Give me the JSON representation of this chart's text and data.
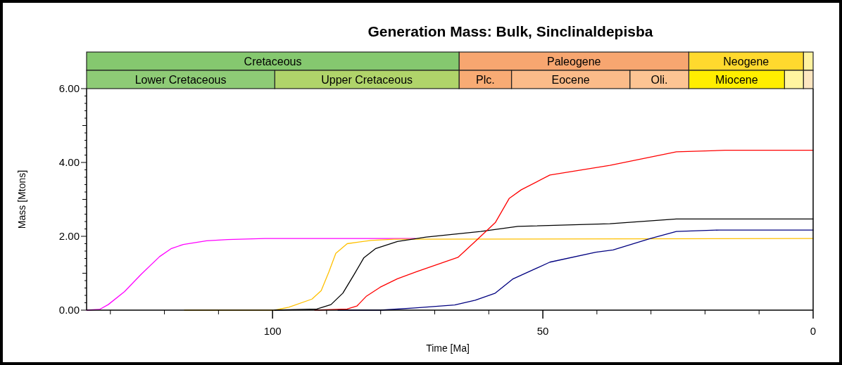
{
  "chart_data": [
    {
      "type": "bar",
      "title": "Generation Mass: Bulk, Sinclinaldepisba",
      "orientation": "horizontal",
      "stacked": true,
      "categories": [
        null,
        null
      ],
      "xlim": [
        134.4,
        0
      ],
      "tick_labels": false,
      "series": [
        {
          "values": [
            1.8,
            1.8
          ],
          "value_labels": [
            null,
            null
          ],
          "colors": [
            "#fff39f",
            "#fde7c1"
          ]
        },
        {
          "values": [
            21.2,
            3.5
          ],
          "value_labels": [
            "Neogene",
            null
          ],
          "colors": [
            "#ffd92e",
            "#fff5a0"
          ]
        },
        {
          "values": [
            42.5,
            17.7
          ],
          "value_labels": [
            "Paleogene",
            "Miocene"
          ],
          "colors": [
            "#f7a670",
            "#ffee00"
          ]
        },
        {
          "values": [
            68.9,
            10.9
          ],
          "value_labels": [
            "Cretaceous",
            "Oli."
          ],
          "colors": [
            "#85c86f",
            "#fdc493"
          ]
        },
        {
          "values": [
            null,
            21.9
          ],
          "value_labels": [
            null,
            "Eocene"
          ],
          "colors": [
            null,
            "#fbbb89"
          ]
        },
        {
          "values": [
            null,
            9.7
          ],
          "value_labels": [
            null,
            "Plc."
          ],
          "colors": [
            null,
            "#f8ab74"
          ]
        },
        {
          "values": [
            null,
            34.1
          ],
          "value_labels": [
            null,
            "Upper Cretaceous"
          ],
          "colors": [
            null,
            "#b0d46a"
          ]
        },
        {
          "values": [
            null,
            34.8
          ],
          "value_labels": [
            null,
            "Lower Cretaceous"
          ],
          "colors": [
            null,
            "#8ecb76"
          ]
        }
      ]
    },
    {
      "type": "line",
      "xlabel": "Time [Ma]",
      "ylabel": "Mass [Mtons]",
      "xlim": [
        134.4,
        0
      ],
      "xticks": [
        {
          "value": 130,
          "label": null
        },
        {
          "value": 120,
          "label": null
        },
        {
          "value": 110,
          "label": null
        },
        100,
        {
          "value": 90,
          "label": null
        },
        {
          "value": 80,
          "label": null
        },
        {
          "value": 70,
          "label": null
        },
        {
          "value": 60,
          "label": null
        },
        50,
        {
          "value": 40,
          "label": null
        },
        {
          "value": 30,
          "label": null
        },
        {
          "value": 20,
          "label": null
        },
        {
          "value": 10,
          "label": null
        },
        0
      ],
      "ylim": [
        0,
        6
      ],
      "yticks": [
        {
          "value": 0,
          "label": "0.00"
        },
        {
          "value": 0.2,
          "label": null
        },
        {
          "value": 0.4,
          "label": null
        },
        {
          "value": 0.6,
          "label": null
        },
        {
          "value": 0.8,
          "label": null
        },
        {
          "value": 1,
          "label": null
        },
        {
          "value": 1.2,
          "label": null
        },
        {
          "value": 1.4,
          "label": null
        },
        {
          "value": 1.6,
          "label": null
        },
        {
          "value": 1.8,
          "label": null
        },
        {
          "value": 2,
          "label": "2.00"
        },
        {
          "value": 2.2,
          "label": null
        },
        {
          "value": 2.4,
          "label": null
        },
        {
          "value": 2.6,
          "label": null
        },
        {
          "value": 2.8,
          "label": null
        },
        {
          "value": 3,
          "label": null
        },
        {
          "value": 3.2,
          "label": null
        },
        {
          "value": 3.4,
          "label": null
        },
        {
          "value": 3.6,
          "label": null
        },
        {
          "value": 3.8,
          "label": null
        },
        {
          "value": 4,
          "label": "4.00"
        },
        {
          "value": 4.2,
          "label": null
        },
        {
          "value": 4.4,
          "label": null
        },
        {
          "value": 4.6,
          "label": null
        },
        {
          "value": 4.8,
          "label": null
        },
        {
          "value": 5,
          "label": null
        },
        {
          "value": 5.2,
          "label": null
        },
        {
          "value": 5.4,
          "label": null
        },
        {
          "value": 5.6,
          "label": null
        },
        {
          "value": 5.8,
          "label": null
        },
        {
          "value": 6,
          "label": "6.00"
        }
      ],
      "series": [
        {
          "color": "#ff00ff",
          "x": [
            134.4,
            132.0,
            130.4,
            127.4,
            124.3,
            120.9,
            118.7,
            116.5,
            112.2,
            108.3,
            101.4,
            73.6
          ],
          "values": [
            0,
            0.02,
            0.15,
            0.5,
            0.97,
            1.45,
            1.67,
            1.78,
            1.88,
            1.91,
            1.94,
            1.94
          ]
        },
        {
          "color": "#ffc000",
          "x": [
            116.3,
            99.6,
            97.0,
            92.7,
            91.0,
            89.6,
            88.3,
            86.2,
            81.8,
            77.5,
            0
          ],
          "values": [
            0,
            0,
            0.08,
            0.3,
            0.53,
            1.03,
            1.54,
            1.8,
            1.89,
            1.92,
            1.94
          ]
        },
        {
          "color": "#000000",
          "x": [
            99.6,
            91.8,
            89.2,
            87.0,
            84.9,
            83.1,
            80.9,
            76.9,
            71.6,
            61.5,
            54.6,
            37.6,
            25.3,
            0
          ],
          "values": [
            0,
            0.03,
            0.15,
            0.46,
            0.97,
            1.42,
            1.67,
            1.86,
            1.98,
            2.13,
            2.27,
            2.34,
            2.47,
            2.47
          ]
        },
        {
          "color": "#ff0000",
          "x": [
            92.2,
            86.2,
            84.4,
            82.7,
            80.1,
            76.9,
            73.2,
            65.7,
            62.5,
            58.8,
            56.2,
            54.0,
            48.7,
            37.6,
            25.3,
            16.3,
            0
          ],
          "values": [
            0,
            0.03,
            0.11,
            0.37,
            0.62,
            0.85,
            1.05,
            1.43,
            1.86,
            2.37,
            3.03,
            3.26,
            3.66,
            3.92,
            4.29,
            4.33,
            4.33
          ]
        },
        {
          "color": "#000080",
          "x": [
            87.9,
            80.1,
            73.7,
            66.3,
            62.5,
            58.8,
            55.6,
            48.7,
            40.2,
            37.0,
            30.1,
            25.3,
            17.4,
            0
          ],
          "values": [
            0,
            0,
            0.06,
            0.14,
            0.27,
            0.46,
            0.84,
            1.3,
            1.57,
            1.63,
            1.94,
            2.13,
            2.17,
            2.17
          ]
        }
      ]
    }
  ]
}
